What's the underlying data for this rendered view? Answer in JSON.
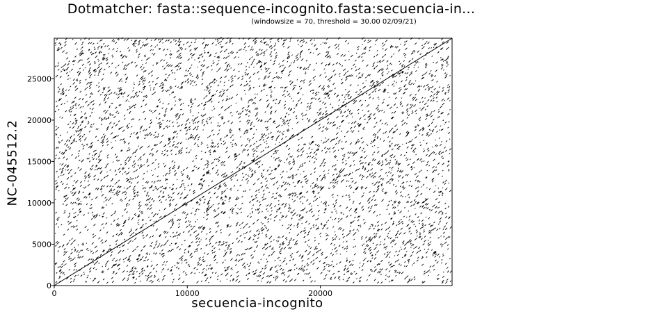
{
  "chart_data": {
    "type": "scatter",
    "title": "Dotmatcher: fasta::sequence-incognito.fasta:secuencia-in...",
    "subtitle": "(windowsize = 70, threshold = 30.00  02/09/21)",
    "xlabel": "secuencia-incognito",
    "ylabel": "NC-045512.2",
    "xlim": [
      0,
      29903
    ],
    "ylim": [
      0,
      29903
    ],
    "x_ticks": [
      0,
      10000,
      20000
    ],
    "y_ticks": [
      0,
      5000,
      10000,
      15000,
      20000,
      25000
    ],
    "x_tick_labels": [
      "0",
      "10000",
      "20000"
    ],
    "y_tick_labels": [
      "0",
      "5000",
      "10000",
      "15000",
      "20000",
      "25000"
    ],
    "series": [
      {
        "x": [
          0,
          29903
        ],
        "y": [
          0,
          29903
        ]
      }
    ],
    "grid": false
  }
}
